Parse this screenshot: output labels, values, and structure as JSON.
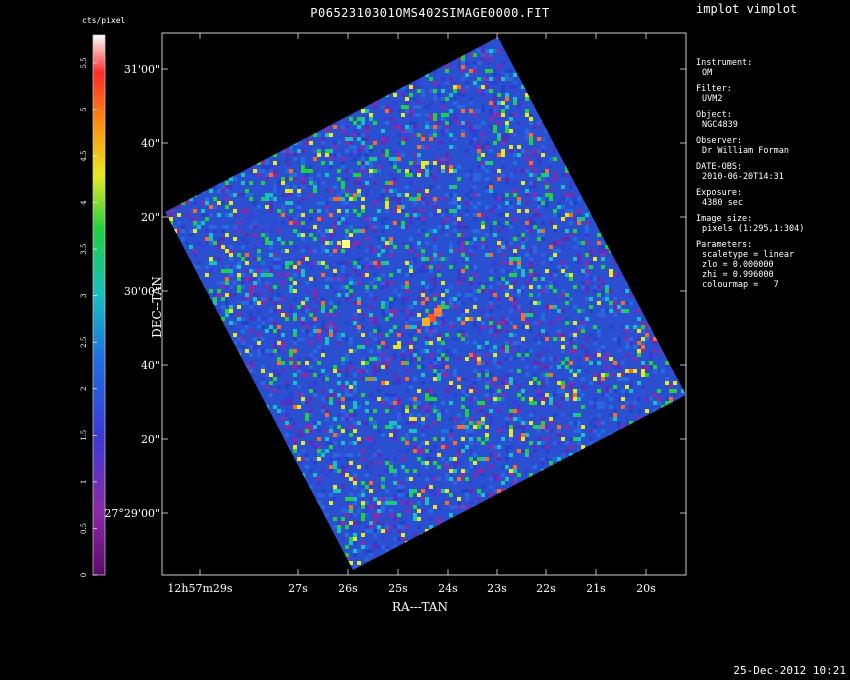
{
  "window": {
    "title": "P0652310301OMS402SIMAGE0000.FIT",
    "app_title": "implot vimplot",
    "footer_date": "25-Dec-2012 10:21"
  },
  "info_panel": [
    {
      "key": "Instrument:",
      "value": "OM"
    },
    {
      "key": "Filter:",
      "value": "UVM2"
    },
    {
      "key": "Object:",
      "value": "NGC4839"
    },
    {
      "key": "Observer:",
      "value": "Dr William Forman"
    },
    {
      "key": "DATE-OBS:",
      "value": "2010-06-20T14:31"
    },
    {
      "key": "Exposure:",
      "value": "4380 sec"
    },
    {
      "key": "Image size:",
      "value": "pixels (1:295,1:304)"
    },
    {
      "key": "Parameters:",
      "value": "scaletype = linear\nzlo = 0.000000\nzhi = 0.996000\ncolourmap =   7"
    }
  ],
  "chart_data": {
    "type": "heatmap",
    "title": "P0652310301OMS402SIMAGE0000.FIT",
    "xlabel": "RA---TAN",
    "ylabel": "DEC--TAN",
    "x_ticks": [
      "12h57m29s",
      "27s",
      "26s",
      "25s",
      "24s",
      "23s",
      "22s",
      "21s",
      "20s"
    ],
    "y_ticks": [
      "31'00\"",
      "40\"",
      "20\"",
      "30'00\"",
      "40\"",
      "20\"",
      "27°29'00\""
    ],
    "colorbar": {
      "label": "cts/pixel",
      "ticks": [
        "0",
        "0.5",
        "1",
        "1.5",
        "2",
        "2.5",
        "3",
        "3.5",
        "4",
        "4.5",
        "5",
        "5.5"
      ],
      "range": [
        0,
        5.8
      ],
      "colourmap": 7
    },
    "colors": {
      "background": "#000000",
      "low": "#7a0f8c",
      "mid": "#2f6bd6",
      "high": "#ff3a2a"
    }
  }
}
